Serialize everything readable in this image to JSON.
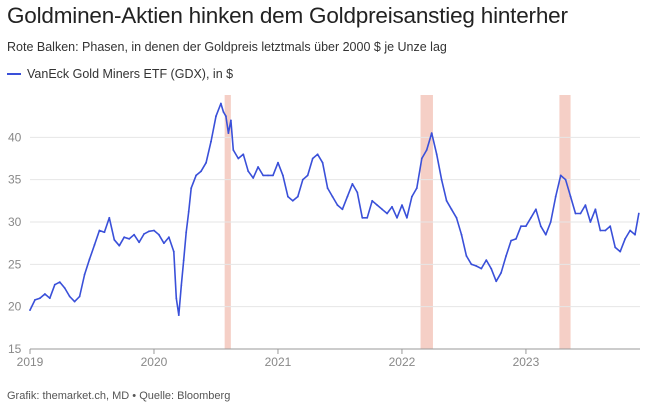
{
  "title": "Goldminen-Aktien hinken dem Goldpreisanstieg hinterher",
  "subtitle": "Rote Balken: Phasen, in denen der Goldpreis letztmals über 2000 $ je Unze lag",
  "footer": "Grafik: themarket.ch, MD • Quelle: Bloomberg",
  "colors": {
    "line": "#3a50d9",
    "highlight": "#f5cfc6",
    "grid": "#e6e6e6",
    "axis": "#999999"
  },
  "chart_data": {
    "type": "line",
    "title": "Goldminen-Aktien hinken dem Goldpreisanstieg hinterher",
    "xlabel": "",
    "ylabel": "",
    "xlim": [
      2019.0,
      2023.92
    ],
    "ylim": [
      15,
      45
    ],
    "yticks": [
      15,
      20,
      25,
      30,
      35,
      40
    ],
    "xticks": [
      {
        "value": 2019.0,
        "label": "2019"
      },
      {
        "value": 2020.0,
        "label": "2020"
      },
      {
        "value": 2021.0,
        "label": "2021"
      },
      {
        "value": 2022.0,
        "label": "2022"
      },
      {
        "value": 2023.0,
        "label": "2023"
      }
    ],
    "highlights": [
      {
        "start": 2020.57,
        "end": 2020.62
      },
      {
        "start": 2022.15,
        "end": 2022.25
      },
      {
        "start": 2023.27,
        "end": 2023.36
      }
    ],
    "series": [
      {
        "name": "VanEck Gold Miners ETF (GDX), in $",
        "x": [
          2019.0,
          2019.04,
          2019.08,
          2019.12,
          2019.16,
          2019.2,
          2019.24,
          2019.28,
          2019.32,
          2019.36,
          2019.4,
          2019.44,
          2019.48,
          2019.52,
          2019.56,
          2019.6,
          2019.64,
          2019.68,
          2019.72,
          2019.76,
          2019.8,
          2019.84,
          2019.88,
          2019.92,
          2019.96,
          2020.0,
          2020.04,
          2020.08,
          2020.12,
          2020.16,
          2020.18,
          2020.2,
          2020.22,
          2020.24,
          2020.26,
          2020.28,
          2020.3,
          2020.34,
          2020.38,
          2020.42,
          2020.46,
          2020.5,
          2020.54,
          2020.56,
          2020.58,
          2020.6,
          2020.62,
          2020.64,
          2020.68,
          2020.72,
          2020.76,
          2020.8,
          2020.84,
          2020.88,
          2020.92,
          2020.96,
          2021.0,
          2021.04,
          2021.08,
          2021.12,
          2021.16,
          2021.2,
          2021.24,
          2021.28,
          2021.32,
          2021.36,
          2021.4,
          2021.44,
          2021.48,
          2021.52,
          2021.56,
          2021.6,
          2021.64,
          2021.68,
          2021.72,
          2021.76,
          2021.8,
          2021.84,
          2021.88,
          2021.92,
          2021.96,
          2022.0,
          2022.04,
          2022.08,
          2022.12,
          2022.16,
          2022.2,
          2022.24,
          2022.28,
          2022.32,
          2022.36,
          2022.4,
          2022.44,
          2022.48,
          2022.52,
          2022.56,
          2022.6,
          2022.64,
          2022.68,
          2022.72,
          2022.76,
          2022.8,
          2022.84,
          2022.88,
          2022.92,
          2022.96,
          2023.0,
          2023.04,
          2023.08,
          2023.12,
          2023.16,
          2023.2,
          2023.24,
          2023.28,
          2023.32,
          2023.36,
          2023.4,
          2023.44,
          2023.48,
          2023.52,
          2023.56,
          2023.6,
          2023.64,
          2023.68,
          2023.72,
          2023.76,
          2023.8,
          2023.84,
          2023.88,
          2023.91
        ],
        "y": [
          19.6,
          20.8,
          21.0,
          21.5,
          21.0,
          22.6,
          22.9,
          22.2,
          21.2,
          20.6,
          21.2,
          23.8,
          25.6,
          27.3,
          29.0,
          28.8,
          30.5,
          27.9,
          27.2,
          28.2,
          28.0,
          28.5,
          27.6,
          28.6,
          28.9,
          29.0,
          28.5,
          27.5,
          28.2,
          26.5,
          21.0,
          19.0,
          22.5,
          25.5,
          28.8,
          31.2,
          34.0,
          35.5,
          36.0,
          37.0,
          39.5,
          42.5,
          44.0,
          43.0,
          42.5,
          40.5,
          42.0,
          38.5,
          37.5,
          38.0,
          36.0,
          35.2,
          36.5,
          35.5,
          35.5,
          35.5,
          37.0,
          35.5,
          33.0,
          32.5,
          33.0,
          35.0,
          35.5,
          37.5,
          38.0,
          37.0,
          34.0,
          33.0,
          32.0,
          31.5,
          33.0,
          34.5,
          33.5,
          30.5,
          30.5,
          32.5,
          32.0,
          31.5,
          31.0,
          31.8,
          30.5,
          32.0,
          30.5,
          33.0,
          34.0,
          37.5,
          38.5,
          40.5,
          38.0,
          35.0,
          32.5,
          31.5,
          30.5,
          28.5,
          26.0,
          25.0,
          24.8,
          24.5,
          25.5,
          24.5,
          23.0,
          24.0,
          26.0,
          27.8,
          28.0,
          29.5,
          29.5,
          30.5,
          31.5,
          29.5,
          28.5,
          30.0,
          33.0,
          35.5,
          35.0,
          33.0,
          31.0,
          31.0,
          32.0,
          30.0,
          31.5,
          29.0,
          29.0,
          29.5,
          27.0,
          26.5,
          28.0,
          29.0,
          28.5,
          31.0
        ]
      }
    ]
  }
}
